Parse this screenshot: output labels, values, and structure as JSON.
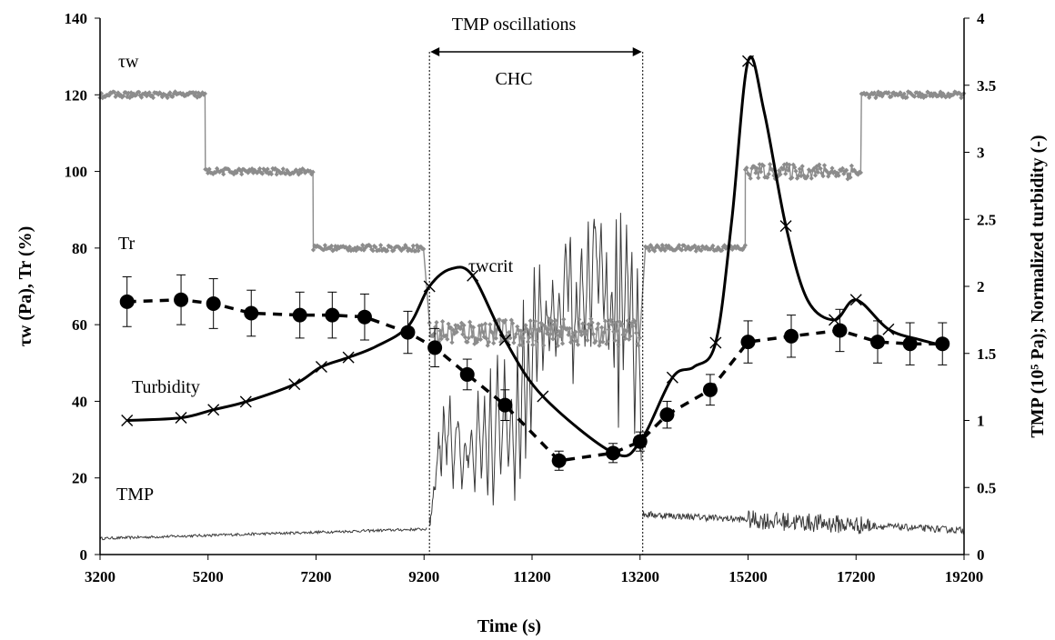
{
  "chart_data": {
    "type": "line",
    "xlabel": "Time (s)",
    "ylabel_left": "τw (Pa), Tr (%)",
    "ylabel_right": "TMP (10⁵ Pa); Normalized turbidity (-)",
    "xlim": [
      3200,
      19200
    ],
    "xticks": [
      3200,
      5200,
      7200,
      9200,
      11200,
      13200,
      15200,
      17200,
      19200
    ],
    "ylim_left": [
      0,
      140
    ],
    "yticks_left": [
      0,
      20,
      40,
      60,
      80,
      100,
      120,
      140
    ],
    "ylim_right": [
      0,
      4
    ],
    "yticks_right": [
      0,
      0.5,
      1,
      1.5,
      2,
      2.5,
      3,
      3.5,
      4
    ],
    "grid": false,
    "annotations": {
      "tmp_oscillations": "TMP oscillations",
      "chc": "CHC",
      "tau_w": "τw",
      "tr": "Tr",
      "tau_wcrit": "τwcrit",
      "turbidity": "Turbidity",
      "tmp": "TMP"
    },
    "vertical_markers": [
      9300,
      13250
    ],
    "colors": {
      "tau_w": "#8c8c8c",
      "tmp": "#3a3a3a",
      "tr": "#000000",
      "turbidity": "#000000"
    },
    "series": [
      {
        "name": "τw",
        "axis": "left",
        "style": "grey noisy steps with diamond markers",
        "steps": [
          {
            "x_start": 3200,
            "x_end": 5150,
            "y": 120
          },
          {
            "x_start": 5150,
            "x_end": 7150,
            "y": 100
          },
          {
            "x_start": 7150,
            "x_end": 9200,
            "y": 80
          },
          {
            "x_start": 9300,
            "x_end": 13200,
            "y": 58
          },
          {
            "x_start": 13300,
            "x_end": 15150,
            "y": 80
          },
          {
            "x_start": 15150,
            "x_end": 17300,
            "y": 100
          },
          {
            "x_start": 17300,
            "x_end": 19200,
            "y": 120
          }
        ]
      },
      {
        "name": "Tr",
        "axis": "left",
        "style": "dashed with filled circles and error bars",
        "x": [
          3700,
          4700,
          5300,
          6000,
          6900,
          7500,
          8100,
          8900,
          9400,
          10000,
          10700,
          11700,
          12700,
          13200,
          13700,
          14500,
          15200,
          16000,
          16900,
          17600,
          18200,
          18800
        ],
        "y": [
          66,
          66.5,
          65.5,
          63,
          62.5,
          62.5,
          62,
          58,
          54,
          47,
          39,
          24.5,
          26.5,
          29.5,
          36.5,
          43,
          55.5,
          57,
          58.5,
          55.5,
          55,
          55
        ],
        "err": [
          6.5,
          6.5,
          6.5,
          6,
          6,
          6,
          6,
          5.5,
          5,
          4,
          4,
          2.5,
          2.5,
          2.5,
          3.5,
          4,
          5.5,
          5.5,
          5.5,
          5.5,
          5.5,
          5.5
        ]
      },
      {
        "name": "Turbidity",
        "axis": "right",
        "style": "solid black smooth curve with x markers",
        "x": [
          3700,
          4700,
          5300,
          5900,
          6800,
          7300,
          7800,
          8300,
          8900,
          9300,
          9700,
          10100,
          10700,
          11400,
          12700,
          13200,
          13800,
          14200,
          14600,
          14900,
          15200,
          15500,
          15900,
          16300,
          16800,
          17200,
          17800,
          18400,
          18800
        ],
        "y": [
          1.0,
          1.02,
          1.08,
          1.14,
          1.27,
          1.4,
          1.47,
          1.55,
          1.7,
          2.0,
          2.13,
          2.08,
          1.6,
          1.18,
          0.76,
          0.84,
          1.32,
          1.4,
          1.58,
          2.5,
          3.68,
          3.3,
          2.45,
          1.9,
          1.75,
          1.9,
          1.68,
          1.6,
          1.56
        ],
        "markers_x": [
          3700,
          4700,
          5300,
          5900,
          6800,
          7300,
          7800,
          9300,
          10100,
          10700,
          11400,
          13200,
          13800,
          14600,
          15200,
          15900,
          16800,
          17200,
          17800
        ]
      },
      {
        "name": "TMP",
        "axis": "right",
        "style": "thin dark noisy line",
        "segments": [
          {
            "x_start": 3200,
            "x_end": 9250,
            "y_start": 0.12,
            "y_end": 0.19,
            "noise": 0.02
          },
          {
            "x_start": 9300,
            "x_end": 13200,
            "y": 0.9,
            "noise": "oscillating 0.4-2.6"
          },
          {
            "x_start": 13250,
            "x_end": 19200,
            "y_start": 0.3,
            "y_end": 0.18,
            "noise": 0.05
          }
        ]
      }
    ]
  }
}
